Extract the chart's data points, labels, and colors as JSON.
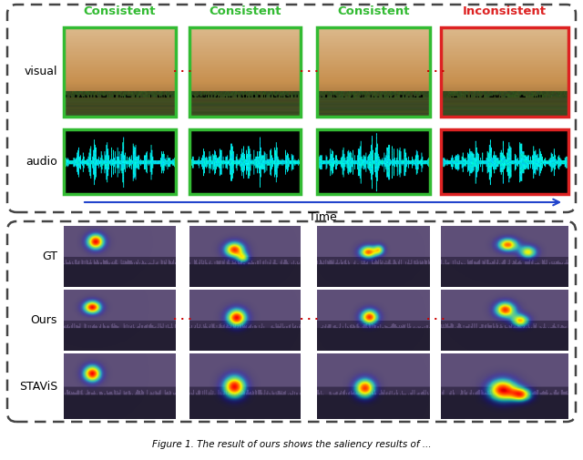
{
  "consistent_color": "#33bb33",
  "inconsistent_color": "#dd2222",
  "dots_color": "#cc0000",
  "time_arrow_color": "#2244cc",
  "background": "#ffffff",
  "top_section_labels": [
    "Consistent",
    "Consistent",
    "Consistent",
    "Inconsistent"
  ],
  "left_labels_top": [
    "visual",
    "audio"
  ],
  "left_labels_bottom": [
    "GT",
    "Ours",
    "STAViS"
  ],
  "section_colors": [
    "#33bb33",
    "#33bb33",
    "#33bb33",
    "#dd2222"
  ],
  "time_label": "Time",
  "caption": "Figure 1. The result of ours shows the saliency results of ..."
}
